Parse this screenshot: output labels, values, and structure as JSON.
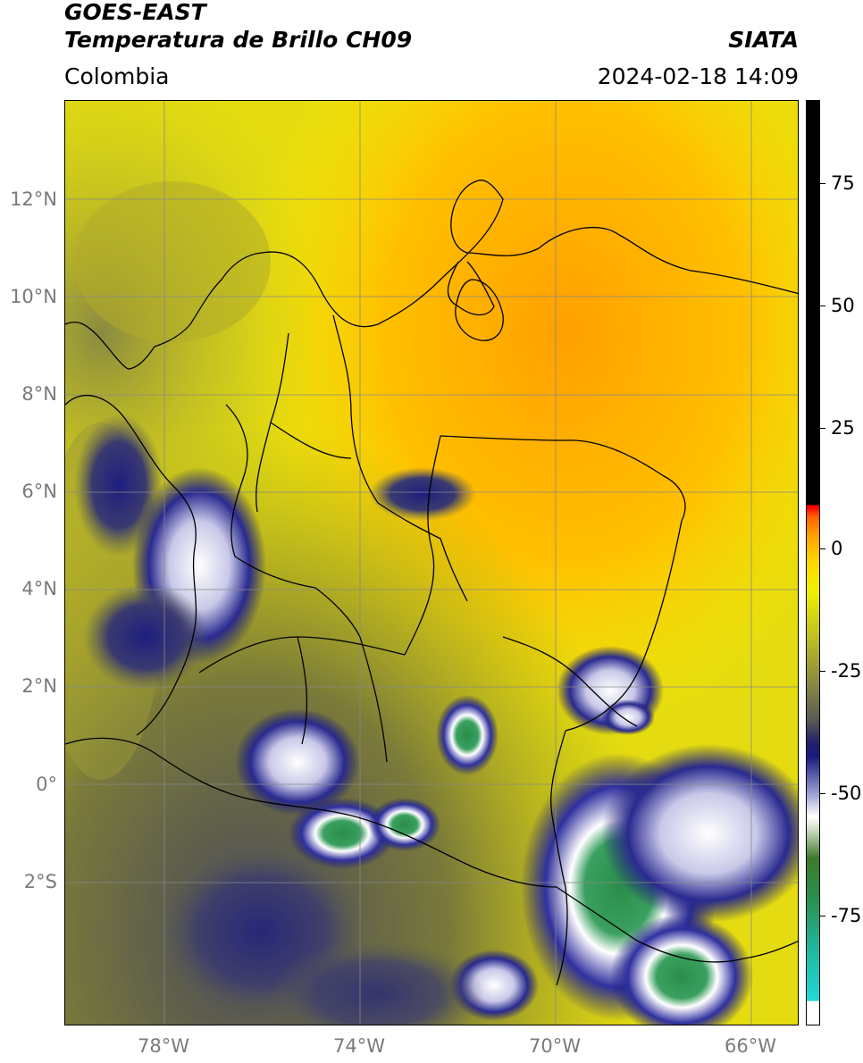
{
  "header": {
    "line1": "GOES-EAST",
    "line2": "Temperatura de Brillo CH09",
    "org": "SIATA",
    "region": "Colombia",
    "datetime": "2024-02-18 14:09"
  },
  "axes": {
    "lat_labels": [
      "12°N",
      "10°N",
      "8°N",
      "6°N",
      "4°N",
      "2°N",
      "0°",
      "2°S"
    ],
    "lon_labels": [
      "78°W",
      "74°W",
      "70°W",
      "66°W"
    ]
  },
  "colorbar": {
    "tick_labels": [
      "75",
      "50",
      "25",
      "0",
      "-25",
      "-50",
      "-75"
    ]
  },
  "map_colors": {
    "warm": "#ffa000",
    "mid": "#e8e000",
    "olive": "#8a8a40",
    "cold_blue": "#1a1a80",
    "very_cold": "#ffffff",
    "coldest": "#2a8e4a",
    "borders": "#000000",
    "grid": "#888888"
  }
}
